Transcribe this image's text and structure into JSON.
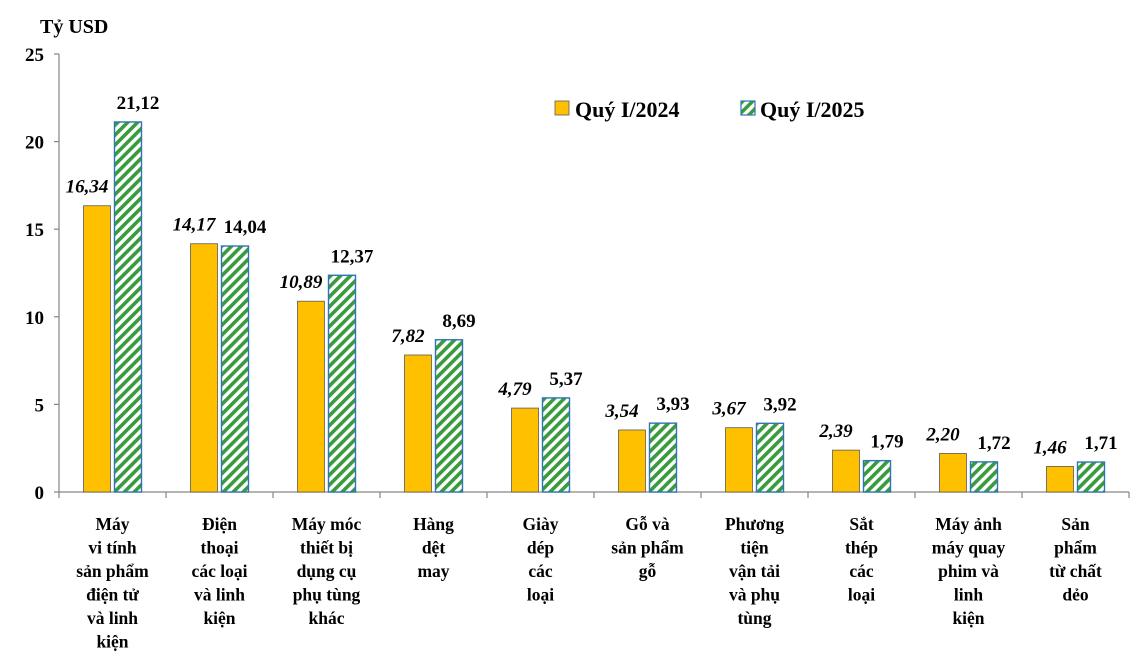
{
  "chart_data": {
    "type": "bar",
    "unit_label": "Tỷ USD",
    "ylim": [
      0,
      25
    ],
    "yticks": [
      "0",
      "5",
      "10",
      "15",
      "20",
      "25"
    ],
    "grid": false,
    "legend_position": "top-right",
    "categories": [
      [
        "Máy",
        "vi tính",
        "sản phẩm",
        "điện tử",
        "và linh",
        "kiện"
      ],
      [
        "Điện",
        "thoại",
        "các loại",
        "và linh",
        "kiện"
      ],
      [
        "Máy móc",
        "thiết bị",
        "dụng cụ",
        "phụ tùng",
        "khác"
      ],
      [
        "Hàng",
        "dệt",
        "may"
      ],
      [
        "Giày",
        "dép",
        "các",
        "loại"
      ],
      [
        "Gỗ và",
        "sản phẩm",
        "gỗ"
      ],
      [
        "Phương",
        "tiện",
        "vận tải",
        "và phụ",
        "tùng"
      ],
      [
        "Sắt",
        "thép",
        "các",
        "loại"
      ],
      [
        "Máy ảnh",
        "máy quay",
        "phim và",
        "linh",
        "kiện"
      ],
      [
        "Sản",
        "phẩm",
        "từ chất",
        "dẻo"
      ]
    ],
    "series": [
      {
        "name": "Quý I/2024",
        "color": "#FFC000",
        "values": [
          16.34,
          14.17,
          10.89,
          7.82,
          4.79,
          3.54,
          3.67,
          2.39,
          2.2,
          1.46
        ],
        "labels": [
          "16,34",
          "14,17",
          "10,89",
          "7,82",
          "4,79",
          "3,54",
          "3,67",
          "2,39",
          "2,20",
          "1,46"
        ]
      },
      {
        "name": "Quý I/2025",
        "color": "#3A9B3E",
        "pattern": "diagonal-stripes",
        "values": [
          21.12,
          14.04,
          12.37,
          8.69,
          5.37,
          3.93,
          3.92,
          1.79,
          1.72,
          1.71
        ],
        "labels": [
          "21,12",
          "14,04",
          "12,37",
          "8,69",
          "5,37",
          "3,93",
          "3,92",
          "1,79",
          "1,72",
          "1,71"
        ]
      }
    ]
  }
}
